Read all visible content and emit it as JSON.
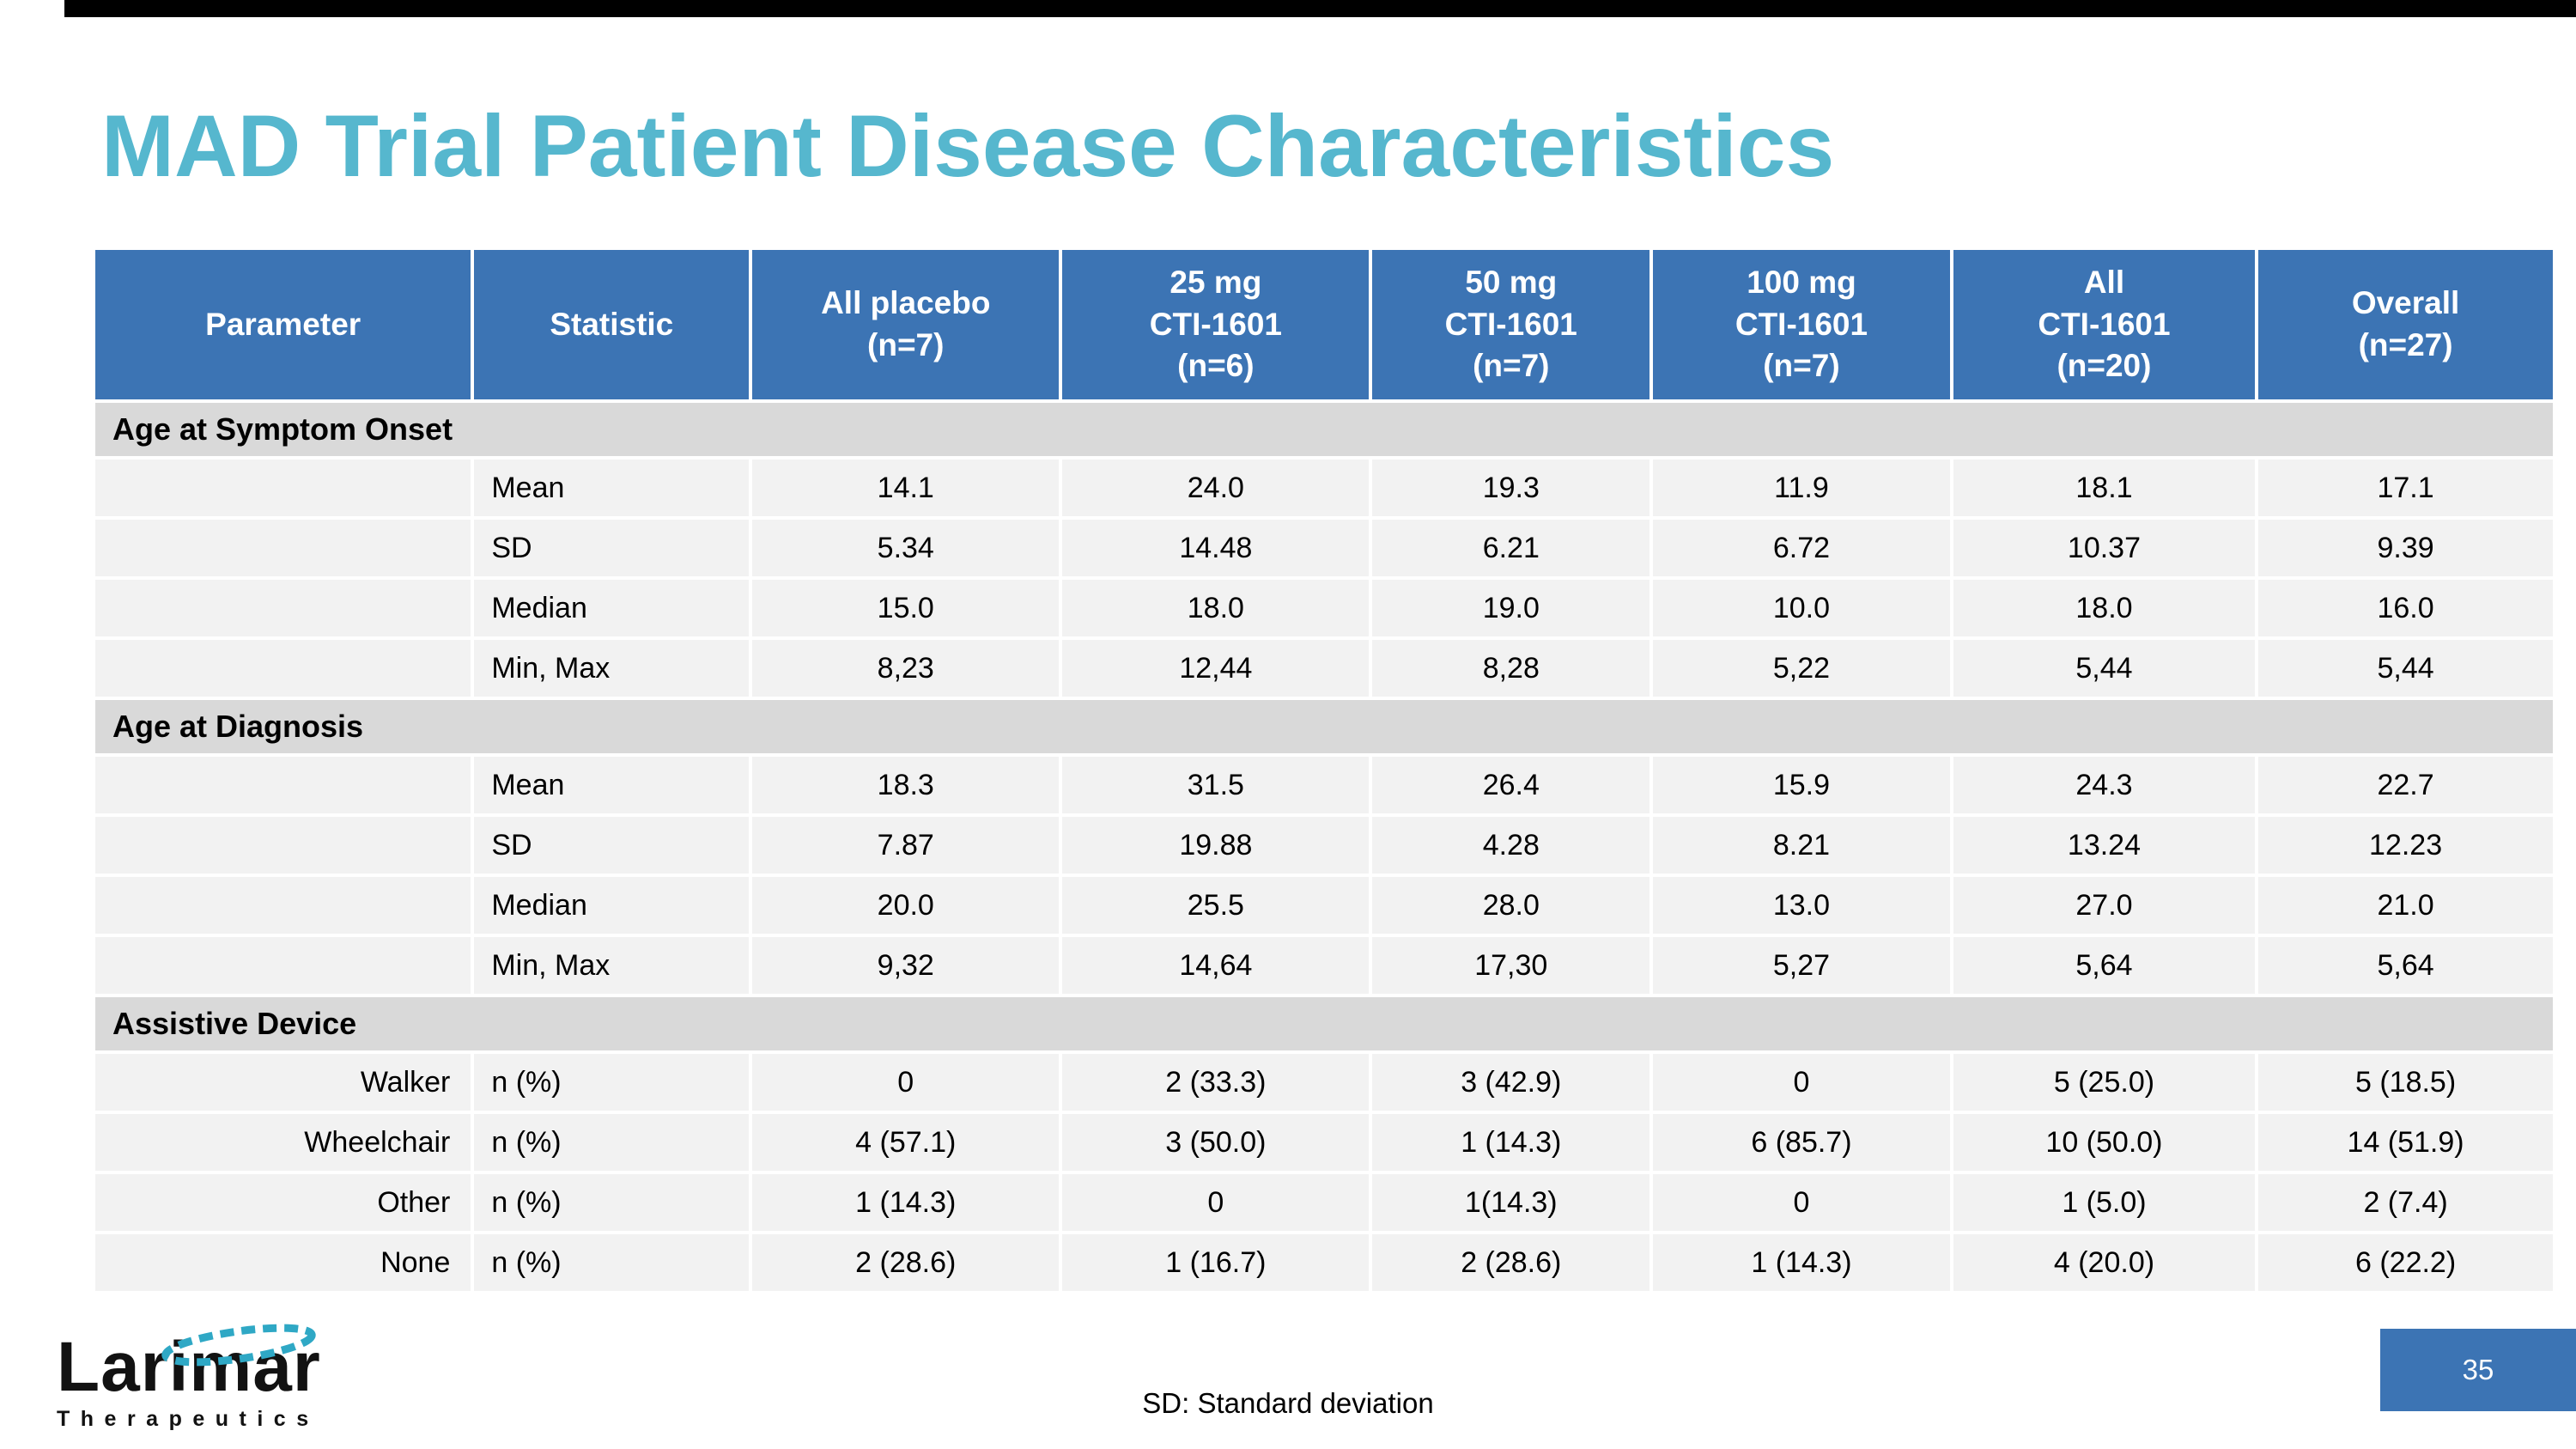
{
  "slide": {
    "title": "MAD Trial Patient Disease Characteristics",
    "footnote": "SD: Standard deviation",
    "page_number": "35"
  },
  "logo": {
    "name": "Larimar",
    "tagline": "Therapeutics"
  },
  "colors": {
    "title_teal": "#56b7ce",
    "table_header_blue": "#3c74b4",
    "section_row_gray": "#d9d9d9",
    "data_row_gray": "#f2f2f2",
    "page_badge_blue": "#3c74b4",
    "logo_accent_teal": "#2fa8c5"
  },
  "table": {
    "columns": [
      "Parameter",
      "Statistic",
      "All placebo\n(n=7)",
      "25 mg\nCTI-1601\n(n=6)",
      "50 mg\nCTI-1601\n(n=7)",
      "100 mg\nCTI-1601\n(n=7)",
      "All\nCTI-1601\n(n=20)",
      "Overall\n(n=27)"
    ],
    "sections": [
      {
        "label": "Age at Symptom Onset",
        "rows": [
          {
            "parameter": "",
            "statistic": "Mean",
            "values": [
              "14.1",
              "24.0",
              "19.3",
              "11.9",
              "18.1",
              "17.1"
            ]
          },
          {
            "parameter": "",
            "statistic": "SD",
            "values": [
              "5.34",
              "14.48",
              "6.21",
              "6.72",
              "10.37",
              "9.39"
            ]
          },
          {
            "parameter": "",
            "statistic": "Median",
            "values": [
              "15.0",
              "18.0",
              "19.0",
              "10.0",
              "18.0",
              "16.0"
            ]
          },
          {
            "parameter": "",
            "statistic": "Min, Max",
            "values": [
              "8,23",
              "12,44",
              "8,28",
              "5,22",
              "5,44",
              "5,44"
            ]
          }
        ]
      },
      {
        "label": "Age at Diagnosis",
        "rows": [
          {
            "parameter": "",
            "statistic": "Mean",
            "values": [
              "18.3",
              "31.5",
              "26.4",
              "15.9",
              "24.3",
              "22.7"
            ]
          },
          {
            "parameter": "",
            "statistic": "SD",
            "values": [
              "7.87",
              "19.88",
              "4.28",
              "8.21",
              "13.24",
              "12.23"
            ]
          },
          {
            "parameter": "",
            "statistic": "Median",
            "values": [
              "20.0",
              "25.5",
              "28.0",
              "13.0",
              "27.0",
              "21.0"
            ]
          },
          {
            "parameter": "",
            "statistic": "Min, Max",
            "values": [
              "9,32",
              "14,64",
              "17,30",
              "5,27",
              "5,64",
              "5,64"
            ]
          }
        ]
      },
      {
        "label": "Assistive Device",
        "rows": [
          {
            "parameter": "Walker",
            "statistic": "n (%)",
            "values": [
              "0",
              "2 (33.3)",
              "3 (42.9)",
              "0",
              "5 (25.0)",
              "5 (18.5)"
            ]
          },
          {
            "parameter": "Wheelchair",
            "statistic": "n (%)",
            "values": [
              "4 (57.1)",
              "3 (50.0)",
              "1 (14.3)",
              "6 (85.7)",
              "10 (50.0)",
              "14 (51.9)"
            ]
          },
          {
            "parameter": "Other",
            "statistic": "n (%)",
            "values": [
              "1 (14.3)",
              "0",
              "1(14.3)",
              "0",
              "1 (5.0)",
              "2 (7.4)"
            ]
          },
          {
            "parameter": "None",
            "statistic": "n (%)",
            "values": [
              "2 (28.6)",
              "1 (16.7)",
              "2 (28.6)",
              "1 (14.3)",
              "4 (20.0)",
              "6 (22.2)"
            ]
          }
        ]
      }
    ]
  }
}
